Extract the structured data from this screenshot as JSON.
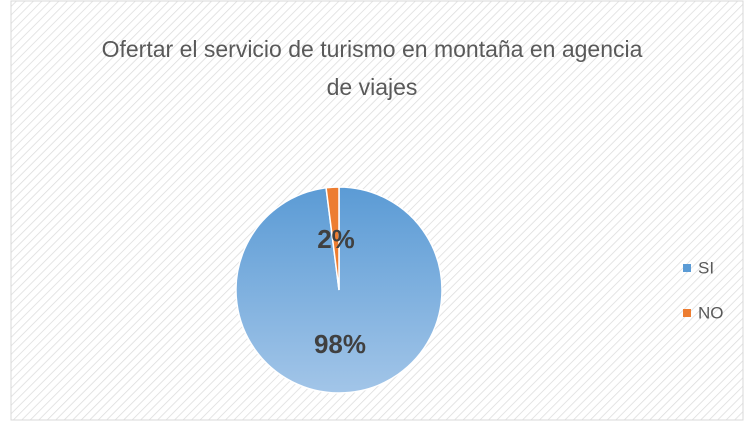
{
  "chart_data": {
    "type": "pie",
    "title": "Ofertar el servicio de turismo en montaña en agencia de viajes",
    "categories": [
      "SI",
      "NO"
    ],
    "values": [
      98,
      2
    ],
    "value_labels": [
      "98%",
      "2%"
    ],
    "colors": [
      "#5b9bd5",
      "#ed7d31"
    ],
    "legend": "right"
  }
}
